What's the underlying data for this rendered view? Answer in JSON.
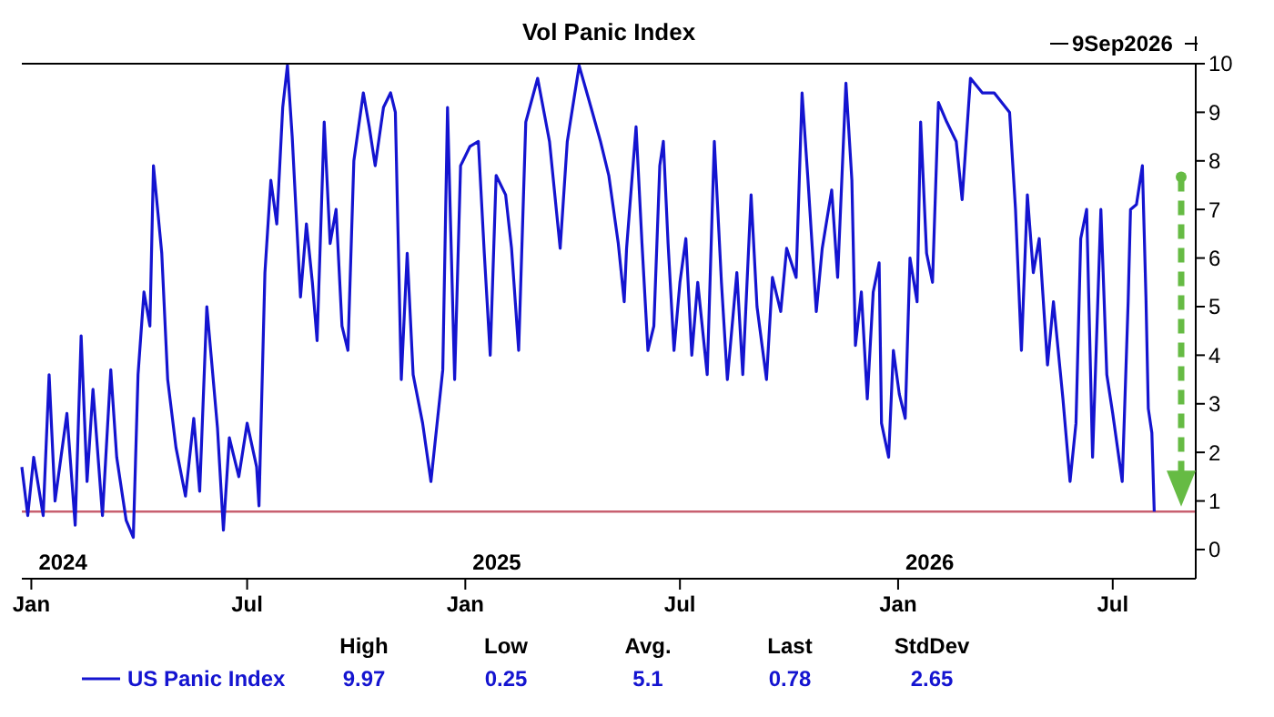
{
  "chart_data": {
    "type": "line",
    "title": "Vol Panic Index",
    "xlim": [
      "2023-12-24",
      "2026-09-09"
    ],
    "xticks": [
      {
        "value": "2024-01-01",
        "label": "Jan"
      },
      {
        "value": "2024-07-01",
        "label": "Jul"
      },
      {
        "value": "2025-01-01",
        "label": "Jan"
      },
      {
        "value": "2025-07-01",
        "label": "Jul"
      },
      {
        "value": "2026-01-01",
        "label": "Jan"
      },
      {
        "value": "2026-07-01",
        "label": "Jul"
      }
    ],
    "ylim": [
      -0.6,
      10
    ],
    "yticks": [
      0,
      1,
      2,
      3,
      4,
      5,
      6,
      7,
      8,
      9,
      10
    ],
    "x": [
      "2023-12-24",
      "2023-12-29",
      "2024-01-03",
      "2024-01-11",
      "2024-01-16",
      "2024-01-21",
      "2024-01-31",
      "2024-02-07",
      "2024-02-12",
      "2024-02-17",
      "2024-02-22",
      "2024-03-01",
      "2024-03-08",
      "2024-03-13",
      "2024-03-21",
      "2024-03-27",
      "2024-03-31",
      "2024-04-05",
      "2024-04-10",
      "2024-04-13",
      "2024-04-20",
      "2024-04-25",
      "2024-05-02",
      "2024-05-10",
      "2024-05-17",
      "2024-05-22",
      "2024-05-28",
      "2024-06-06",
      "2024-06-11",
      "2024-06-16",
      "2024-06-24",
      "2024-07-01",
      "2024-07-09",
      "2024-07-11",
      "2024-07-16",
      "2024-07-21",
      "2024-07-26",
      "2024-07-31",
      "2024-08-04",
      "2024-08-08",
      "2024-08-15",
      "2024-08-20",
      "2024-08-25",
      "2024-08-29",
      "2024-09-04",
      "2024-09-09",
      "2024-09-14",
      "2024-09-19",
      "2024-09-24",
      "2024-09-29",
      "2024-10-07",
      "2024-10-12",
      "2024-10-17",
      "2024-10-24",
      "2024-10-30",
      "2024-11-03",
      "2024-11-08",
      "2024-11-13",
      "2024-11-18",
      "2024-11-26",
      "2024-12-03",
      "2024-12-13",
      "2024-12-17",
      "2024-12-23",
      "2024-12-28",
      "2025-01-05",
      "2025-01-12",
      "2025-01-17",
      "2025-01-22",
      "2025-01-27",
      "2025-02-04",
      "2025-02-09",
      "2025-02-15",
      "2025-02-21",
      "2025-03-03",
      "2025-03-13",
      "2025-03-22",
      "2025-03-28",
      "2025-04-07",
      "2025-04-17",
      "2025-04-25",
      "2025-05-02",
      "2025-05-10",
      "2025-05-15",
      "2025-05-17",
      "2025-05-25",
      "2025-05-30",
      "2025-06-04",
      "2025-06-09",
      "2025-06-14",
      "2025-06-17",
      "2025-06-21",
      "2025-06-26",
      "2025-07-01",
      "2025-07-06",
      "2025-07-11",
      "2025-07-16",
      "2025-07-24",
      "2025-07-30",
      "2025-08-05",
      "2025-08-10",
      "2025-08-18",
      "2025-08-23",
      "2025-08-30",
      "2025-09-04",
      "2025-09-12",
      "2025-09-17",
      "2025-09-24",
      "2025-09-29",
      "2025-10-07",
      "2025-10-12",
      "2025-10-17",
      "2025-10-24",
      "2025-10-29",
      "2025-11-06",
      "2025-11-11",
      "2025-11-18",
      "2025-11-23",
      "2025-11-26",
      "2025-12-01",
      "2025-12-06",
      "2025-12-11",
      "2025-12-16",
      "2025-12-18",
      "2025-12-24",
      "2025-12-28",
      "2026-01-02",
      "2026-01-07",
      "2026-01-11",
      "2026-01-17",
      "2026-01-20",
      "2026-01-25",
      "2026-01-30",
      "2026-02-04",
      "2026-02-11",
      "2026-02-19",
      "2026-02-24",
      "2026-03-03",
      "2026-03-13",
      "2026-03-23",
      "2026-04-05",
      "2026-04-10",
      "2026-04-15",
      "2026-04-20",
      "2026-04-25",
      "2026-04-30",
      "2026-05-07",
      "2026-05-12",
      "2026-05-20",
      "2026-05-26",
      "2026-05-31",
      "2026-06-04",
      "2026-06-09",
      "2026-06-14",
      "2026-06-21",
      "2026-06-26",
      "2026-07-01",
      "2026-07-09",
      "2026-07-14",
      "2026-07-16",
      "2026-07-21",
      "2026-07-26",
      "2026-07-29",
      "2026-07-31",
      "2026-08-03",
      "2026-08-05"
    ],
    "series": [
      {
        "name": "US Panic Index",
        "color": "#1414d0",
        "values": [
          1.7,
          0.7,
          1.9,
          0.7,
          3.6,
          1.0,
          2.8,
          0.5,
          4.4,
          1.4,
          3.3,
          0.7,
          3.7,
          1.9,
          0.6,
          0.25,
          3.6,
          5.3,
          4.6,
          7.9,
          6.1,
          3.5,
          2.1,
          1.1,
          2.7,
          1.2,
          5.0,
          2.5,
          0.4,
          2.3,
          1.5,
          2.6,
          1.7,
          0.9,
          5.7,
          7.6,
          6.7,
          9.1,
          9.97,
          8.5,
          5.2,
          6.7,
          5.5,
          4.3,
          8.8,
          6.3,
          7.0,
          4.6,
          4.1,
          8.0,
          9.4,
          8.7,
          7.9,
          9.1,
          9.4,
          9.0,
          3.5,
          6.1,
          3.6,
          2.6,
          1.4,
          3.7,
          9.1,
          3.5,
          7.9,
          8.3,
          8.4,
          6.1,
          4.0,
          7.7,
          7.3,
          6.2,
          4.1,
          8.8,
          9.7,
          8.4,
          6.2,
          8.4,
          9.96,
          9.1,
          8.4,
          7.7,
          6.3,
          5.1,
          6.2,
          8.7,
          6.3,
          4.1,
          4.6,
          7.9,
          8.4,
          6.3,
          4.1,
          5.5,
          6.4,
          4.0,
          5.5,
          3.6,
          8.4,
          5.5,
          3.5,
          5.7,
          3.6,
          7.3,
          5.0,
          3.5,
          5.6,
          4.9,
          6.2,
          5.6,
          9.4,
          7.6,
          4.9,
          6.2,
          7.4,
          5.6,
          9.6,
          7.6,
          4.2,
          5.3,
          3.1,
          5.3,
          5.9,
          2.6,
          1.9,
          4.1,
          3.2,
          2.7,
          6.0,
          5.1,
          8.8,
          6.1,
          5.5,
          9.2,
          8.8,
          8.4,
          7.2,
          9.7,
          9.4,
          9.4,
          9.0,
          7.0,
          4.1,
          7.3,
          5.7,
          6.4,
          3.8,
          5.1,
          3.1,
          1.4,
          2.6,
          6.4,
          7.0,
          1.9,
          7.0,
          3.6,
          2.8,
          1.4,
          5.1,
          7.0,
          7.1,
          7.9,
          5.2,
          2.9,
          2.4,
          0.78
        ]
      }
    ],
    "ref_lines": [
      {
        "axis": "y",
        "value": 0.78,
        "color": "#c86070"
      }
    ],
    "legend": "bottom",
    "marker": "none",
    "grid": false,
    "annotations": [
      "2024",
      "2025",
      "2026",
      "9Sep2026",
      "High",
      "Low",
      "Avg.",
      "Last",
      "StdDev",
      "9.97",
      "0.25",
      "5.1",
      "0.78",
      "2.65"
    ]
  }
}
